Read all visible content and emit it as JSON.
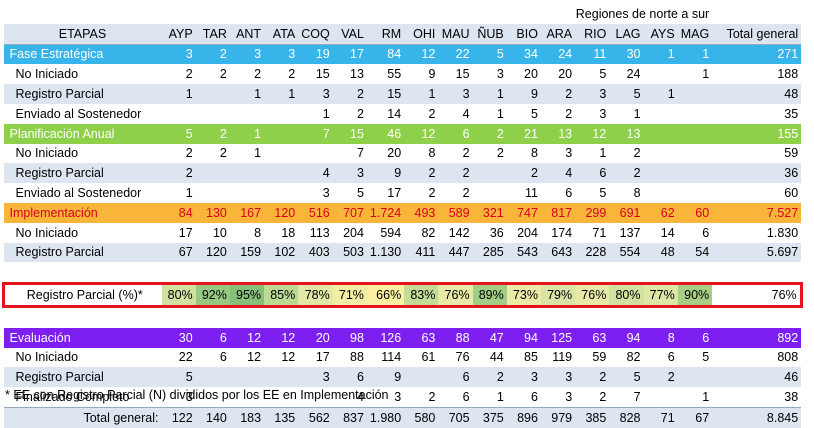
{
  "header": {
    "super_title": "Regiones de norte a sur",
    "etapas_label": "ETAPAS",
    "regions": [
      "AYP",
      "TAR",
      "ANT",
      "ATA",
      "COQ",
      "VAL",
      "RM",
      "OHI",
      "MAU",
      "ÑUB",
      "BIO",
      "ARA",
      "RIO",
      "LAG",
      "AYS",
      "MAG"
    ],
    "total_label": "Total general"
  },
  "sections": [
    {
      "name": "Fase Estratégica",
      "values": [
        "3",
        "2",
        "3",
        "3",
        "19",
        "17",
        "84",
        "12",
        "22",
        "5",
        "34",
        "24",
        "11",
        "30",
        "1",
        "1"
      ],
      "total": "271",
      "rows": [
        {
          "label": "No Iniciado",
          "values": [
            "2",
            "2",
            "2",
            "2",
            "15",
            "13",
            "55",
            "9",
            "15",
            "3",
            "20",
            "20",
            "5",
            "24",
            "",
            "1"
          ],
          "total": "188"
        },
        {
          "label": "Registro Parcial",
          "values": [
            "1",
            "",
            "1",
            "1",
            "3",
            "2",
            "15",
            "1",
            "3",
            "1",
            "9",
            "2",
            "3",
            "5",
            "1",
            ""
          ],
          "total": "48"
        },
        {
          "label": "Enviado al Sostenedor",
          "values": [
            "",
            "",
            "",
            "",
            "1",
            "2",
            "14",
            "2",
            "4",
            "1",
            "5",
            "2",
            "3",
            "1",
            "",
            ""
          ],
          "total": "35"
        }
      ]
    },
    {
      "name": "Planificación Anual",
      "values": [
        "5",
        "2",
        "1",
        "",
        "7",
        "15",
        "46",
        "12",
        "6",
        "2",
        "21",
        "13",
        "12",
        "13",
        "",
        ""
      ],
      "total": "155",
      "rows": [
        {
          "label": "No Iniciado",
          "values": [
            "2",
            "2",
            "1",
            "",
            "",
            "7",
            "20",
            "8",
            "2",
            "2",
            "8",
            "3",
            "1",
            "2",
            "",
            ""
          ],
          "total": "59"
        },
        {
          "label": "Registro Parcial",
          "values": [
            "2",
            "",
            "",
            "",
            "4",
            "3",
            "9",
            "2",
            "2",
            "",
            "2",
            "4",
            "6",
            "2",
            "",
            ""
          ],
          "total": "36"
        },
        {
          "label": "Enviado al Sostenedor",
          "values": [
            "1",
            "",
            "",
            "",
            "3",
            "5",
            "17",
            "2",
            "2",
            "",
            "11",
            "6",
            "5",
            "8",
            "",
            ""
          ],
          "total": "60"
        }
      ]
    },
    {
      "name": "Implementación",
      "values": [
        "84",
        "130",
        "167",
        "120",
        "516",
        "707",
        "1.724",
        "493",
        "589",
        "321",
        "747",
        "817",
        "299",
        "691",
        "62",
        "60"
      ],
      "total": "7.527",
      "rows": [
        {
          "label": "No Iniciado",
          "values": [
            "17",
            "10",
            "8",
            "18",
            "113",
            "204",
            "594",
            "82",
            "142",
            "36",
            "204",
            "174",
            "71",
            "137",
            "14",
            "6"
          ],
          "total": "1.830"
        },
        {
          "label": "Registro Parcial",
          "values": [
            "67",
            "120",
            "159",
            "102",
            "403",
            "503",
            "1.130",
            "411",
            "447",
            "285",
            "543",
            "643",
            "228",
            "554",
            "48",
            "54"
          ],
          "total": "5.697"
        }
      ],
      "pct_row": {
        "label": "Registro Parcial  (%)*",
        "values": [
          "80%",
          "92%",
          "95%",
          "85%",
          "78%",
          "71%",
          "66%",
          "83%",
          "76%",
          "89%",
          "73%",
          "79%",
          "76%",
          "80%",
          "77%",
          "90%"
        ],
        "total": "76%",
        "colors": [
          "#d1e2a0",
          "#97c981",
          "#85c07b",
          "#bbd993",
          "#e1e8a6",
          "#f2eda5",
          "#fbefa4",
          "#c3dc96",
          "#e6ea a6",
          "#a2cd86",
          "#eceaa7",
          "#d9e5a4",
          "#e6eaa6",
          "#d1e2a0",
          "#dde7a5",
          "#a6cf85"
        ]
      }
    },
    {
      "name": "Evaluación",
      "values": [
        "30",
        "6",
        "12",
        "12",
        "20",
        "98",
        "126",
        "63",
        "88",
        "47",
        "94",
        "125",
        "63",
        "94",
        "8",
        "6"
      ],
      "total": "892",
      "rows": [
        {
          "label": "No Iniciado",
          "values": [
            "22",
            "6",
            "12",
            "12",
            "17",
            "88",
            "114",
            "61",
            "76",
            "44",
            "85",
            "119",
            "59",
            "82",
            "6",
            "5"
          ],
          "total": "808"
        },
        {
          "label": "Registro Parcial",
          "values": [
            "5",
            "",
            "",
            "",
            "3",
            "6",
            "9",
            "",
            "6",
            "2",
            "3",
            "3",
            "2",
            "5",
            "2",
            ""
          ],
          "total": "46"
        },
        {
          "label": "Finalizado Completo",
          "values": [
            "3",
            "",
            "",
            "",
            "",
            "4",
            "3",
            "2",
            "6",
            "1",
            "6",
            "3",
            "2",
            "7",
            "",
            "1"
          ],
          "total": "38"
        }
      ]
    }
  ],
  "grand_total": {
    "label": "Total general:",
    "values": [
      "122",
      "140",
      "183",
      "135",
      "562",
      "837",
      "1.980",
      "580",
      "705",
      "375",
      "896",
      "979",
      "385",
      "828",
      "71",
      "67"
    ],
    "total": "8.845"
  },
  "footnote": "* EE con Registro Parcial (N) divididos por los EE en Implementación"
}
